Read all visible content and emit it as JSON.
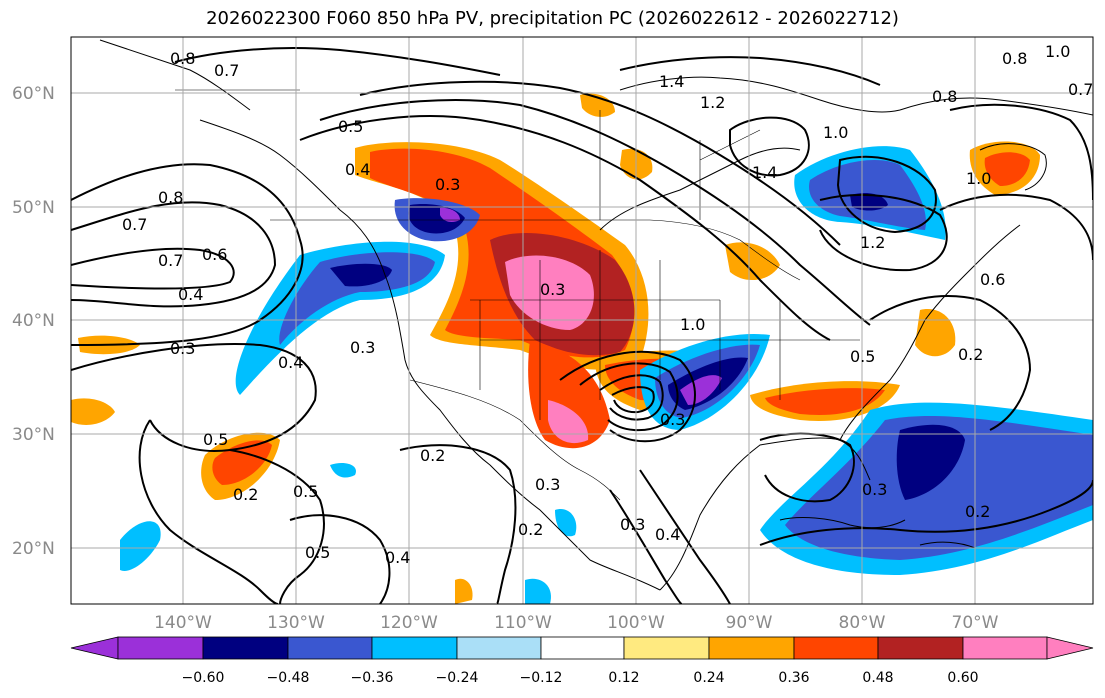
{
  "title": "2026022300 F060 850 hPa PV, precipitation PC (2026022612 - 2026022712)",
  "lat_labels": [
    "60°N",
    "50°N",
    "40°N",
    "30°N",
    "20°N"
  ],
  "lon_labels": [
    "140°W",
    "130°W",
    "120°W",
    "110°W",
    "100°W",
    "90°W",
    "80°W",
    "70°W"
  ],
  "colorbar": {
    "ticks": [
      "−0.60",
      "−0.48",
      "−0.36",
      "−0.24",
      "−0.12",
      "0.12",
      "0.24",
      "0.36",
      "0.48",
      "0.60"
    ],
    "colors": [
      "#9b30d9",
      "#000080",
      "#3a57d0",
      "#00bfff",
      "#aadff7",
      "#ffffff",
      "#ffea80",
      "#ffa500",
      "#ff4500",
      "#b22222",
      "#ff7fbf"
    ]
  },
  "contour_labels": [
    "0.8",
    "0.7",
    "1.4",
    "1.2",
    "1.0",
    "0.8",
    "0.7",
    "0.5",
    "0.4",
    "0.3",
    "0.8",
    "0.7",
    "0.6",
    "0.4",
    "0.3",
    "0.4",
    "0.3",
    "0.5",
    "0.2",
    "0.2",
    "0.5",
    "0.5",
    "0.4",
    "0.3",
    "0.3",
    "0.4",
    "0.2",
    "0.3",
    "1.4",
    "1.0",
    "1.2",
    "0.6",
    "0.5",
    "0.2",
    "0.3",
    "0.2",
    "1.0",
    "0.8",
    "0.7",
    "1.0",
    "0.3"
  ]
}
